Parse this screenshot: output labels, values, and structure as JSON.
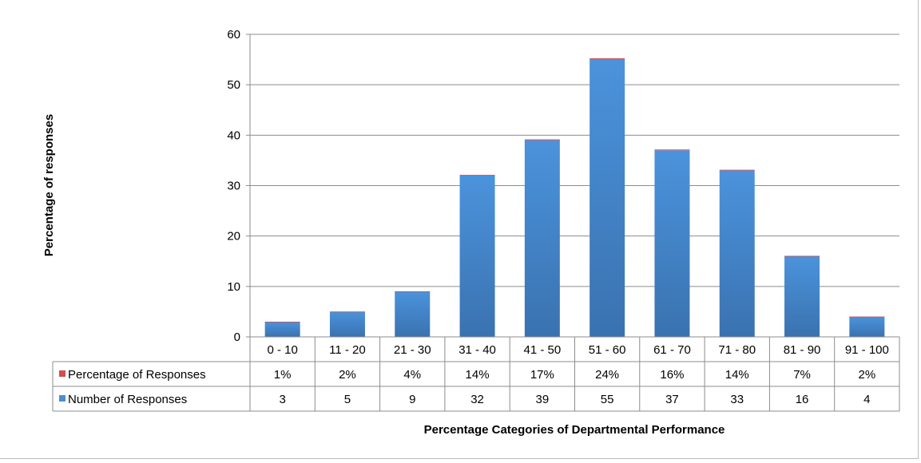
{
  "chart_data": {
    "type": "bar",
    "stacked": true,
    "categories": [
      "0 - 10",
      "11 - 20",
      "21 - 30",
      "31 - 40",
      "41 - 50",
      "51 - 60",
      "61 - 70",
      "71 - 80",
      "81 - 90",
      "91 - 100"
    ],
    "series": [
      {
        "name": "Number of Responses",
        "color": "#4a8fd4",
        "values": [
          3,
          5,
          9,
          32,
          39,
          55,
          37,
          33,
          16,
          4
        ],
        "labels": [
          "3",
          "5",
          "9",
          "32",
          "39",
          "55",
          "37",
          "33",
          "16",
          "4"
        ]
      },
      {
        "name": "Percentage of Responses",
        "color": "#d24d4d",
        "values": [
          0.01,
          0.02,
          0.04,
          0.14,
          0.17,
          0.24,
          0.16,
          0.14,
          0.07,
          0.02
        ],
        "labels": [
          "1%",
          "2%",
          "4%",
          "14%",
          "17%",
          "24%",
          "16%",
          "14%",
          "7%",
          "2%"
        ]
      }
    ],
    "title": "",
    "xlabel": "Percentage Categories of Departmental Performance",
    "ylabel": "Percentage of responses",
    "ylim": [
      0,
      60
    ],
    "yticks": [
      0,
      10,
      20,
      30,
      40,
      50,
      60
    ],
    "grid": true,
    "legend": "data-table"
  }
}
